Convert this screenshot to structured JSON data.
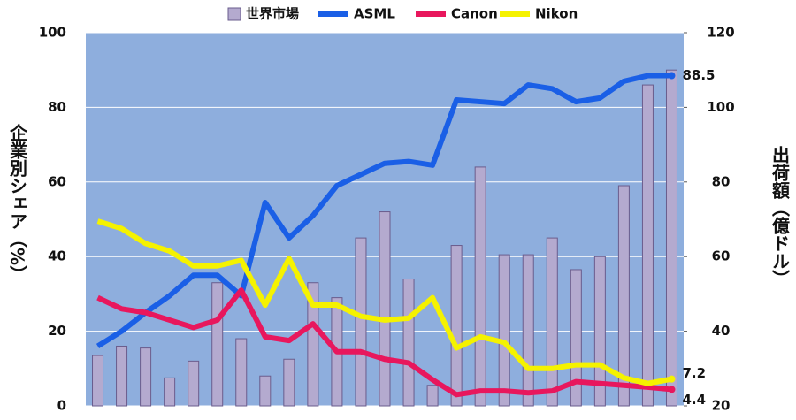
{
  "chart_data": {
    "type": "bar_line",
    "y_label": "企業別シェア（%）",
    "y2_label": "出荷額（億ドル）",
    "categories": [
      null,
      null,
      null,
      null,
      null,
      null,
      null,
      null,
      null,
      null,
      null,
      null,
      null,
      null,
      null,
      null,
      null,
      null,
      null,
      null,
      null,
      null,
      null,
      null,
      null
    ],
    "ylim": [
      0,
      100
    ],
    "yticks": [
      0,
      20,
      40,
      60,
      80,
      100
    ],
    "y2lim": [
      20,
      120
    ],
    "y2ticks": [
      20,
      40,
      60,
      80,
      100,
      120
    ],
    "grid": true,
    "legend": "top",
    "series": [
      {
        "name": "世界市場",
        "type": "bar",
        "axis": "y2",
        "color": "#b4aacf",
        "values": [
          33.5,
          36,
          35.5,
          27.5,
          32,
          53,
          38,
          28,
          32.5,
          53,
          49,
          65,
          72,
          54,
          25.5,
          63,
          84,
          60.5,
          60.5,
          65,
          56.5,
          60,
          79,
          106,
          110
        ]
      },
      {
        "name": "ASML",
        "type": "line",
        "color": "#1a5fe6",
        "values": [
          16,
          20,
          25,
          29.5,
          35,
          35,
          29.5,
          54.5,
          45,
          51,
          59,
          62,
          65,
          65.5,
          64.5,
          82,
          81.5,
          81,
          86,
          85,
          81.5,
          82.5,
          87,
          88.5,
          88.5
        ],
        "value_labels": [
          null,
          null,
          null,
          null,
          null,
          null,
          null,
          null,
          null,
          null,
          null,
          null,
          null,
          null,
          null,
          null,
          null,
          null,
          null,
          null,
          null,
          null,
          null,
          null,
          "88.5"
        ]
      },
      {
        "name": "Canon",
        "type": "line",
        "color": "#e8175d",
        "values": [
          29,
          26,
          25,
          23,
          21,
          23,
          31,
          18.5,
          17.5,
          22,
          14.5,
          14.5,
          12.5,
          11.5,
          7,
          3,
          4,
          4,
          3.5,
          4,
          6.5,
          6,
          5.5,
          5,
          4.4
        ],
        "value_labels": [
          null,
          null,
          null,
          null,
          null,
          null,
          null,
          null,
          null,
          null,
          null,
          null,
          null,
          null,
          null,
          null,
          null,
          null,
          null,
          null,
          null,
          null,
          null,
          null,
          "4.4"
        ]
      },
      {
        "name": "Nikon",
        "type": "line",
        "color": "#f5f200",
        "values": [
          49.5,
          47.5,
          43.5,
          41.5,
          37.5,
          37.5,
          39,
          27,
          39.5,
          27,
          27,
          24,
          23,
          23.5,
          29,
          15.5,
          18.5,
          17,
          10,
          10,
          11,
          11,
          7.5,
          6,
          7.2
        ],
        "value_labels": [
          null,
          null,
          null,
          null,
          null,
          null,
          null,
          null,
          null,
          null,
          null,
          null,
          null,
          null,
          null,
          null,
          null,
          null,
          null,
          null,
          null,
          null,
          null,
          null,
          "7.2"
        ]
      }
    ]
  }
}
